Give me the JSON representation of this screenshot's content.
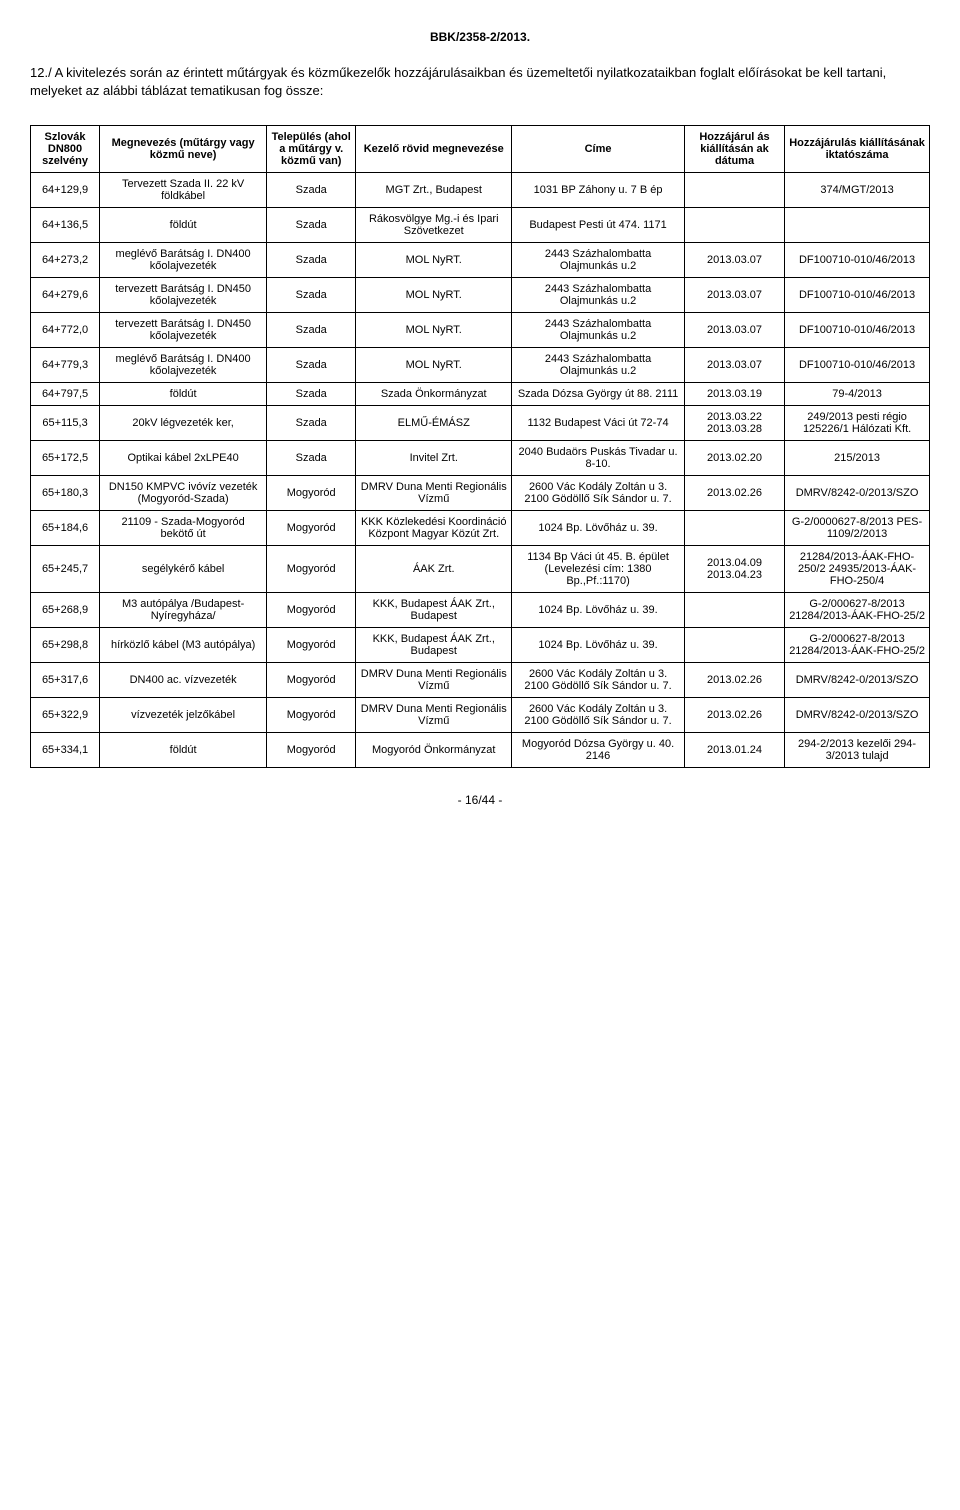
{
  "doc_header": "BBK/2358-2/2013.",
  "intro": "12./ A kivitelezés során az érintett műtárgyak és közműkezelők hozzájárulásaikban és üzemeltetői nyilatkozataikban foglalt előírásokat be kell tartani, melyeket az alábbi táblázat tematikusan fog össze:",
  "page_footer": "- 16/44 -",
  "table": {
    "columns": [
      "Szlovák DN800 szelvény",
      "Megnevezés (műtárgy vagy közmű neve)",
      "Település (ahol a műtárgy v. közmű van)",
      "Kezelő rövid megnevezése",
      "Címe",
      "Hozzájárul ás kiállításán ak dátuma",
      "Hozzájárulás kiállításának iktatószáma"
    ],
    "rows": [
      [
        "64+129,9",
        "Tervezett Szada II. 22 kV földkábel",
        "Szada",
        "MGT Zrt., Budapest",
        "1031 BP Záhony u. 7 B ép",
        "",
        "374/MGT/2013"
      ],
      [
        "64+136,5",
        "földút",
        "Szada",
        "Rákosvölgye Mg.-i és Ipari Szövetkezet",
        "Budapest Pesti út 474. 1171",
        "",
        ""
      ],
      [
        "64+273,2",
        "meglévő Barátság I. DN400 kőolajvezeték",
        "Szada",
        "MOL NyRT.",
        "2443 Százhalombatta Olajmunkás u.2",
        "2013.03.07",
        "DF100710-010/46/2013"
      ],
      [
        "64+279,6",
        "tervezett Barátság I. DN450 kőolajvezeték",
        "Szada",
        "MOL NyRT.",
        "2443 Százhalombatta Olajmunkás u.2",
        "2013.03.07",
        "DF100710-010/46/2013"
      ],
      [
        "64+772,0",
        "tervezett Barátság I. DN450 kőolajvezeték",
        "Szada",
        "MOL NyRT.",
        "2443 Százhalombatta Olajmunkás u.2",
        "2013.03.07",
        "DF100710-010/46/2013"
      ],
      [
        "64+779,3",
        "meglévő Barátság I. DN400 kőolajvezeték",
        "Szada",
        "MOL NyRT.",
        "2443 Százhalombatta Olajmunkás u.2",
        "2013.03.07",
        "DF100710-010/46/2013"
      ],
      [
        "64+797,5",
        "földút",
        "Szada",
        "Szada Önkormányzat",
        "Szada Dózsa György út 88. 2111",
        "2013.03.19",
        "79-4/2013"
      ],
      [
        "65+115,3",
        "20kV légvezeték ker,",
        "Szada",
        "ELMŰ-ÉMÁSZ",
        "1132 Budapest Váci út 72-74",
        "2013.03.22 2013.03.28",
        "249/2013 pesti régio 125226/1 Hálózati Kft."
      ],
      [
        "65+172,5",
        "Optikai kábel 2xLPE40",
        "Szada",
        "Invitel Zrt.",
        "2040 Budaörs Puskás Tivadar u. 8-10.",
        "2013.02.20",
        "215/2013"
      ],
      [
        "65+180,3",
        "DN150 KMPVC ivóvíz vezeték (Mogyoród-Szada)",
        "Mogyoród",
        "DMRV Duna Menti Regionális Vízmű",
        "2600 Vác Kodály Zoltán u 3. 2100 Gödöllő Sík Sándor u. 7.",
        "2013.02.26",
        "DMRV/8242-0/2013/SZO"
      ],
      [
        "65+184,6",
        "21109 - Szada-Mogyoród bekötő út",
        "Mogyoród",
        "KKK Közlekedési Koordináció Központ Magyar Közút Zrt.",
        "1024 Bp. Lövőház u. 39.",
        "",
        "G-2/0000627-8/2013 PES-1109/2/2013"
      ],
      [
        "65+245,7",
        "segélykérő kábel",
        "Mogyoród",
        "ÁAK Zrt.",
        "1134 Bp Váci út 45. B. épület (Levelezési cím: 1380 Bp.,Pf.:1170)",
        "2013.04.09 2013.04.23",
        "21284/2013-ÁAK-FHO-250/2 24935/2013-ÁAK-FHO-250/4"
      ],
      [
        "65+268,9",
        "M3 autópálya /Budapest-Nyíregyháza/",
        "Mogyoród",
        "KKK, Budapest ÁAK Zrt., Budapest",
        "1024 Bp. Lövőház u. 39.",
        "",
        "G-2/000627-8/2013 21284/2013-ÁAK-FHO-25/2"
      ],
      [
        "65+298,8",
        "hírközlő kábel (M3 autópálya)",
        "Mogyoród",
        "KKK, Budapest ÁAK Zrt., Budapest",
        "1024 Bp. Lövőház u. 39.",
        "",
        "G-2/000627-8/2013 21284/2013-ÁAK-FHO-25/2"
      ],
      [
        "65+317,6",
        "DN400 ac. vízvezeték",
        "Mogyoród",
        "DMRV Duna Menti Regionális Vízmű",
        "2600 Vác Kodály Zoltán u 3. 2100 Gödöllő Sík Sándor u. 7.",
        "2013.02.26",
        "DMRV/8242-0/2013/SZO"
      ],
      [
        "65+322,9",
        "vízvezeték jelzőkábel",
        "Mogyoród",
        "DMRV Duna Menti Regionális Vízmű",
        "2600 Vác Kodály Zoltán u 3. 2100 Gödöllő Sík Sándor u. 7.",
        "2013.02.26",
        "DMRV/8242-0/2013/SZO"
      ],
      [
        "65+334,1",
        "földút",
        "Mogyoród",
        "Mogyoród Önkormányzat",
        "Mogyoród Dózsa György u. 40. 2146",
        "2013.01.24",
        "294-2/2013 kezelői 294-3/2013 tulajd"
      ]
    ]
  }
}
